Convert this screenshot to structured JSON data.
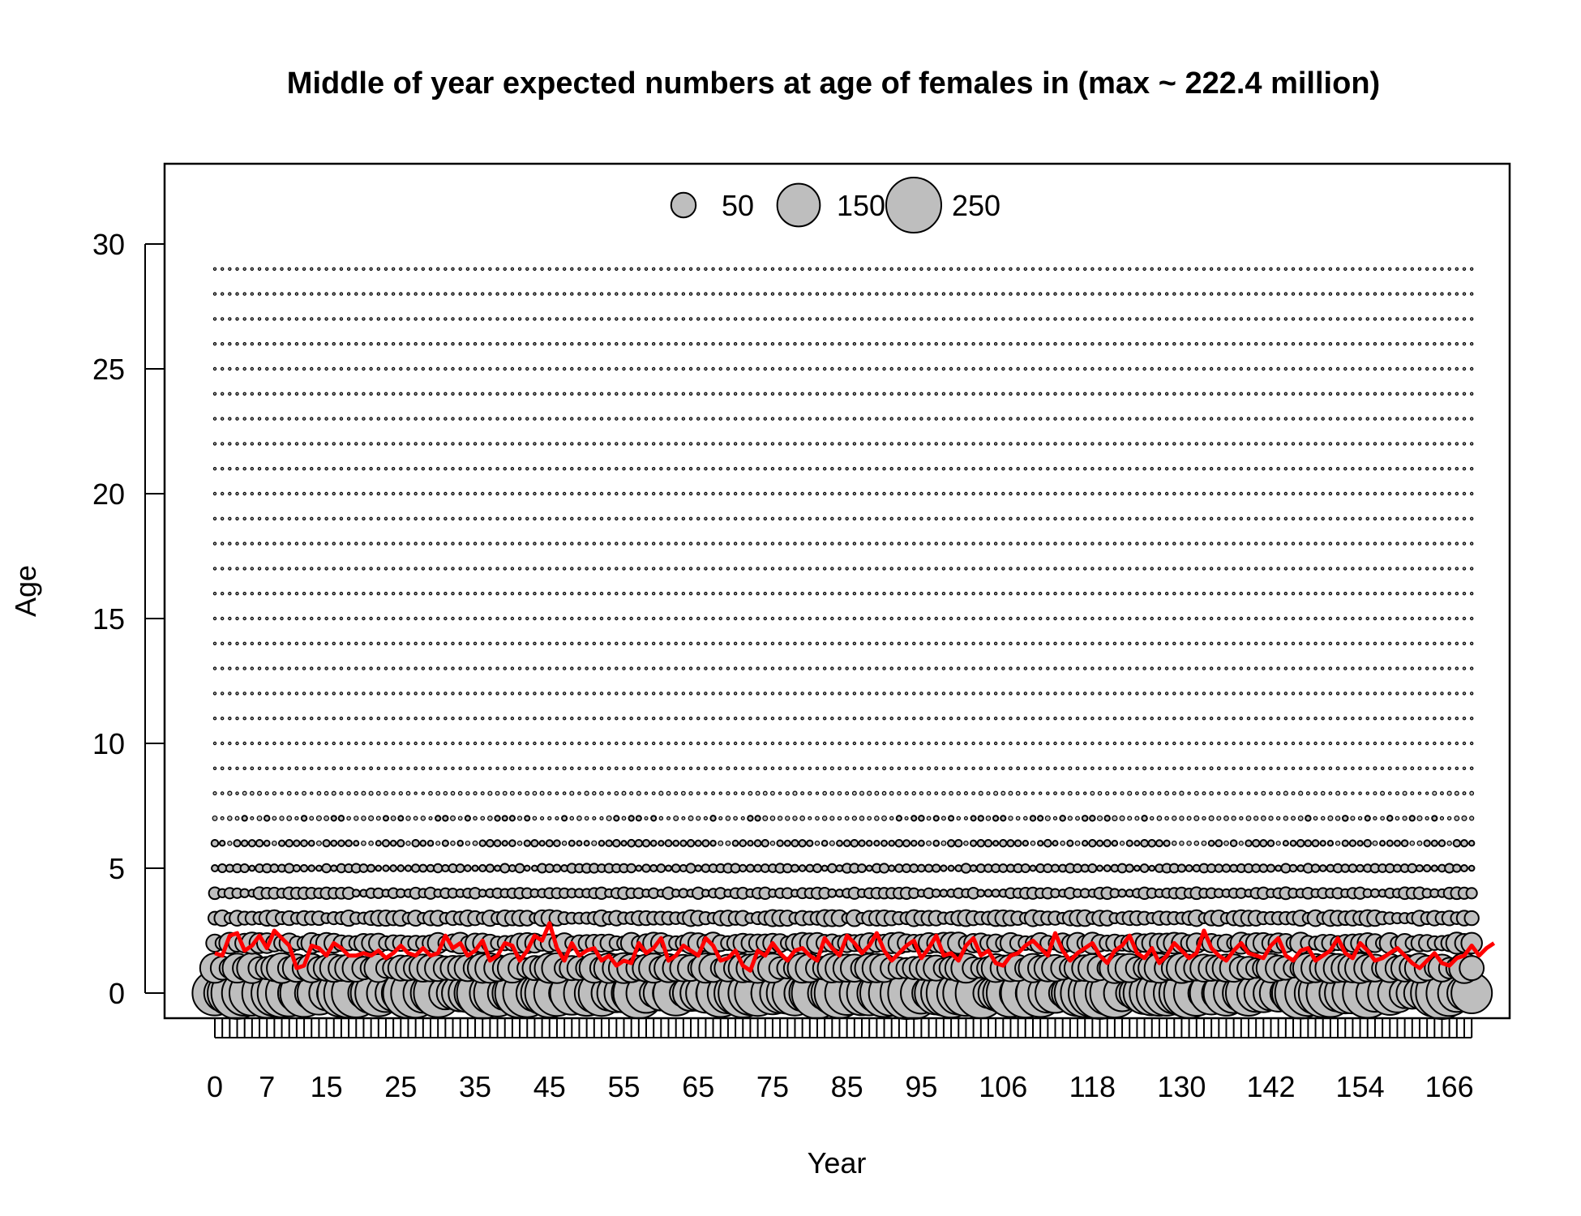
{
  "chart_data": {
    "type": "scatter",
    "subtype": "bubble",
    "title": "Middle of year expected numbers at age of females in (max ~ 222.4 million)",
    "xlabel": "Year",
    "ylabel": "Age",
    "xlim": [
      0,
      169
    ],
    "ylim": [
      -1.3,
      33.2
    ],
    "x_tick_labels": [
      "0",
      "7",
      "15",
      "25",
      "35",
      "45",
      "55",
      "65",
      "75",
      "85",
      "95",
      "106",
      "118",
      "130",
      "142",
      "154",
      "166"
    ],
    "x_tick_positions": [
      0,
      7,
      15,
      25,
      35,
      45,
      55,
      65,
      75,
      85,
      95,
      106,
      118,
      130,
      142,
      154,
      166
    ],
    "y_tick_labels": [
      "0",
      "5",
      "10",
      "15",
      "20",
      "25",
      "30"
    ],
    "y_tick_positions": [
      0,
      5,
      10,
      15,
      20,
      25,
      30
    ],
    "years": [
      0,
      169
    ],
    "ages": [
      0,
      29
    ],
    "max_value_millions": 222.4,
    "bubble_fill": "#bebebe",
    "bubble_stroke": "#000000",
    "legend": {
      "placement": "top-center",
      "values": [
        50,
        150,
        250
      ],
      "labels": [
        "50",
        "150",
        "250"
      ]
    },
    "mean_age_line": {
      "color": "#ff0000",
      "y": [
        1.6,
        1.5,
        2.3,
        2.4,
        1.7,
        1.9,
        2.3,
        1.8,
        2.5,
        2.2,
        1.9,
        1.0,
        1.1,
        1.9,
        1.8,
        1.5,
        2.0,
        1.8,
        1.5,
        1.5,
        1.6,
        1.5,
        1.7,
        1.4,
        1.6,
        1.9,
        1.6,
        1.5,
        1.8,
        1.5,
        1.6,
        2.3,
        1.8,
        2.0,
        1.5,
        1.7,
        2.1,
        1.3,
        1.5,
        2.0,
        1.9,
        1.3,
        1.7,
        2.3,
        2.1,
        2.8,
        1.8,
        1.3,
        2.0,
        1.5,
        1.7,
        1.8,
        1.3,
        1.5,
        1.1,
        1.3,
        1.2,
        2.0,
        1.6,
        1.8,
        2.2,
        1.3,
        1.5,
        1.9,
        1.7,
        1.5,
        2.2,
        1.9,
        1.3,
        1.4,
        1.7,
        1.1,
        0.9,
        1.7,
        1.5,
        2.0,
        1.6,
        1.3,
        1.7,
        1.8,
        1.5,
        1.3,
        2.2,
        1.8,
        1.5,
        2.3,
        2.0,
        1.6,
        1.9,
        2.4,
        1.7,
        1.3,
        1.6,
        1.9,
        2.1,
        1.4,
        1.8,
        2.3,
        1.5,
        1.6,
        1.3,
        1.9,
        2.2,
        1.5,
        1.7,
        1.2,
        1.1,
        1.5,
        1.6,
        1.9,
        2.1,
        1.8,
        1.5,
        2.4,
        1.7,
        1.3,
        1.6,
        1.8,
        2.0,
        1.5,
        1.2,
        1.7,
        1.9,
        2.3,
        1.6,
        1.4,
        1.8,
        1.2,
        1.5,
        2.0,
        1.7,
        1.4,
        1.6,
        2.5,
        1.8,
        1.5,
        1.3,
        1.7,
        2.0,
        1.6,
        1.5,
        1.4,
        1.9,
        2.2,
        1.5,
        1.3,
        1.7,
        1.8,
        1.3,
        1.5,
        1.7,
        2.2,
        1.6,
        1.4,
        2.0,
        1.7,
        1.3,
        1.4,
        1.6,
        1.8,
        1.5,
        1.2,
        1.0,
        1.3,
        1.6,
        1.2,
        1.1,
        1.4,
        1.5,
        1.9,
        1.5,
        1.8,
        2.0
      ]
    }
  }
}
